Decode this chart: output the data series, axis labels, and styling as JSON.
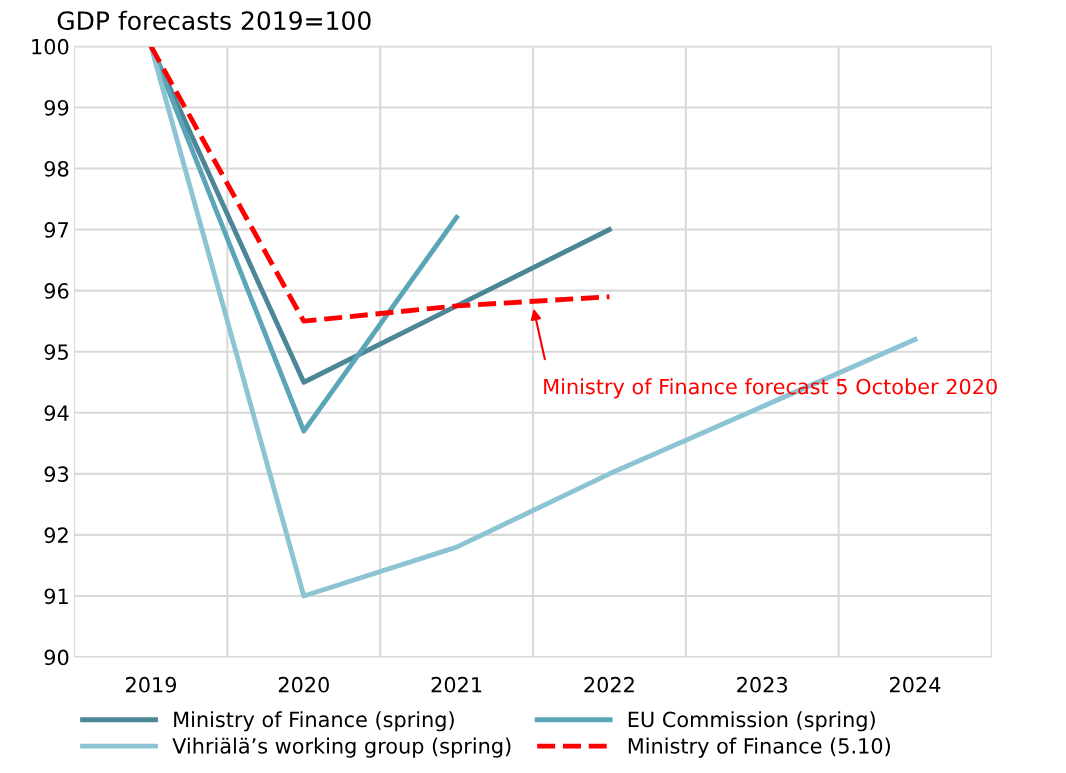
{
  "chart_data": {
    "type": "line",
    "title": "GDP forecasts 2019=100",
    "categories": [
      "2019",
      "2020",
      "2021",
      "2022",
      "2023",
      "2024"
    ],
    "series": [
      {
        "name": "Ministry of Finance (spring)",
        "color": "#4d8797",
        "values": [
          100,
          94.5,
          95.75,
          97.0,
          null,
          null
        ]
      },
      {
        "name": "EU Commission (spring)",
        "color": "#5aa5b8",
        "values": [
          100,
          93.7,
          97.2,
          null,
          null,
          null
        ]
      },
      {
        "name": "Vihriälä’s working group (spring)",
        "color": "#8cc4d3",
        "values": [
          100,
          91.0,
          91.8,
          93.0,
          94.1,
          95.2
        ]
      },
      {
        "name": "Ministry of Finance (5.10)",
        "color": "#ff0000",
        "line_style": "dashed",
        "values": [
          100,
          95.5,
          95.75,
          95.9,
          null,
          null
        ]
      }
    ],
    "annotations": [
      "Ministry of Finance forecast 5 October 2020"
    ],
    "ylim": [
      90,
      100
    ],
    "yticks": [
      90,
      91,
      92,
      93,
      94,
      95,
      96,
      97,
      98,
      99,
      100
    ],
    "grid": true,
    "legend": "bottom",
    "marker": "none"
  }
}
